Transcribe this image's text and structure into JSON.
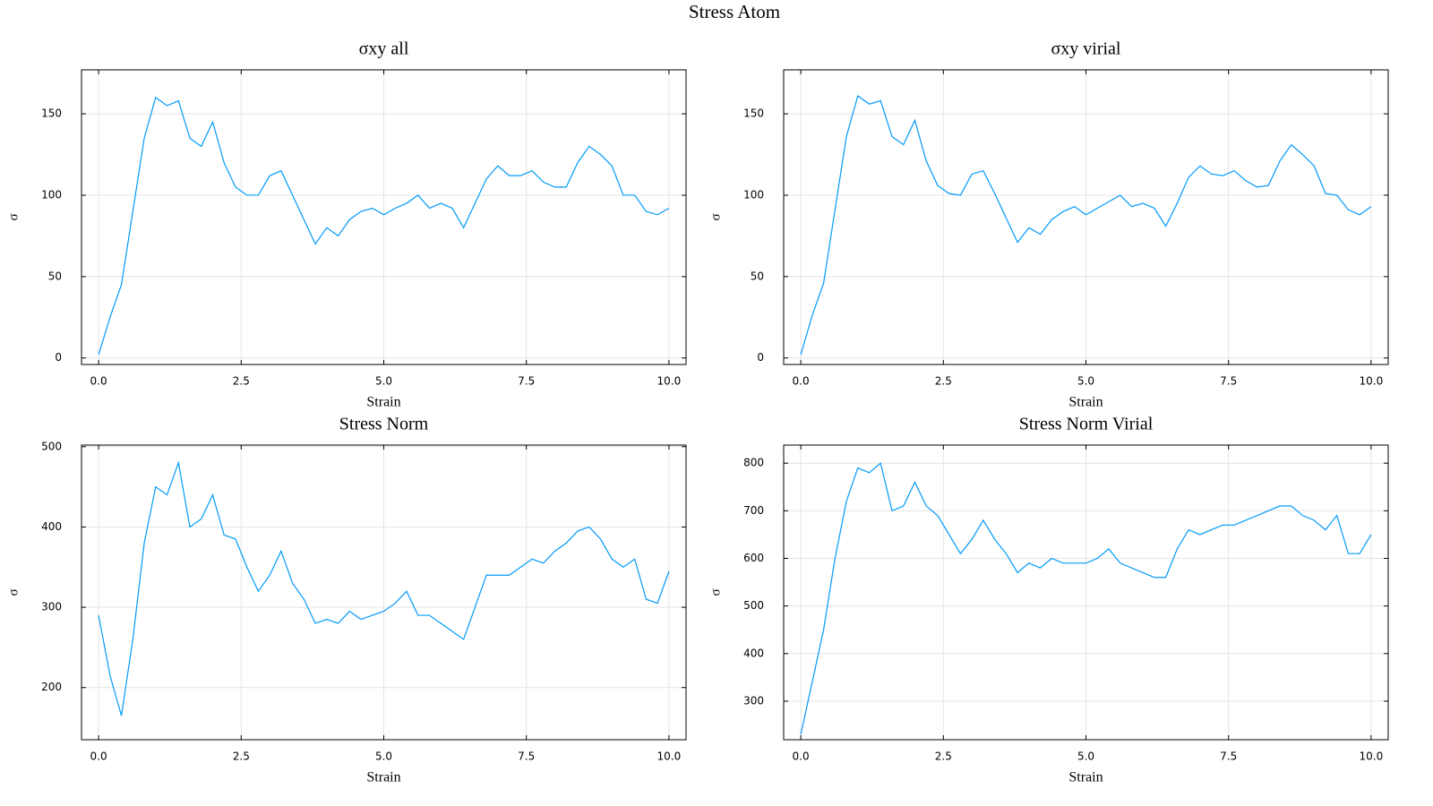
{
  "title": "Stress Atom",
  "chart_data": [
    {
      "type": "line",
      "title": "σxy all",
      "xlabel": "Strain",
      "ylabel": "σ",
      "grid": true,
      "x": [
        0,
        0.2,
        0.4,
        0.6,
        0.8,
        1,
        1.2,
        1.4,
        1.6,
        1.8,
        2,
        2.2,
        2.4,
        2.6,
        2.8,
        3,
        3.2,
        3.4,
        3.6,
        3.8,
        4,
        4.2,
        4.4,
        4.6,
        4.8,
        5,
        5.2,
        5.4,
        5.6,
        5.8,
        6,
        6.2,
        6.4,
        6.6,
        6.8,
        7,
        7.2,
        7.4,
        7.6,
        7.8,
        8,
        8.2,
        8.4,
        8.6,
        8.8,
        9,
        9.2,
        9.4,
        9.6,
        9.8,
        10
      ],
      "series": [
        {
          "color": "#009af9",
          "values": [
            2,
            25,
            45,
            90,
            135,
            160,
            155,
            158,
            135,
            130,
            145,
            120,
            105,
            100,
            100,
            112,
            115,
            100,
            85,
            70,
            80,
            75,
            85,
            90,
            92,
            88,
            92,
            95,
            100,
            92,
            95,
            92,
            80,
            95,
            110,
            118,
            112,
            112,
            115,
            108,
            105,
            105,
            120,
            130,
            125,
            118,
            100,
            100,
            90,
            88,
            92
          ]
        }
      ],
      "xlim": [
        -0.3,
        10.3
      ],
      "xticks": [
        {
          "value": 0,
          "label": "0.0"
        },
        2.5,
        {
          "value": 5,
          "label": "5.0"
        },
        7.5,
        {
          "value": 10,
          "label": "10.0"
        }
      ],
      "ylim": [
        -4,
        177
      ],
      "yticks": [
        0,
        50,
        100,
        150
      ]
    },
    {
      "type": "line",
      "title": "σxy virial",
      "xlabel": "Strain",
      "ylabel": "σ",
      "grid": true,
      "x": [
        0,
        0.2,
        0.4,
        0.6,
        0.8,
        1,
        1.2,
        1.4,
        1.6,
        1.8,
        2,
        2.2,
        2.4,
        2.6,
        2.8,
        3,
        3.2,
        3.4,
        3.6,
        3.8,
        4,
        4.2,
        4.4,
        4.6,
        4.8,
        5,
        5.2,
        5.4,
        5.6,
        5.8,
        6,
        6.2,
        6.4,
        6.6,
        6.8,
        7,
        7.2,
        7.4,
        7.6,
        7.8,
        8,
        8.2,
        8.4,
        8.6,
        8.8,
        9,
        9.2,
        9.4,
        9.6,
        9.8,
        10
      ],
      "series": [
        {
          "color": "#009af9",
          "values": [
            2,
            26,
            46,
            91,
            136,
            161,
            156,
            158,
            136,
            131,
            146,
            121,
            106,
            101,
            100,
            113,
            115,
            101,
            86,
            71,
            80,
            76,
            85,
            90,
            93,
            88,
            92,
            96,
            100,
            93,
            95,
            92,
            81,
            95,
            111,
            118,
            113,
            112,
            115,
            109,
            105,
            106,
            121,
            131,
            125,
            118,
            101,
            100,
            91,
            88,
            93
          ]
        }
      ],
      "xlim": [
        -0.3,
        10.3
      ],
      "xticks": [
        {
          "value": 0,
          "label": "0.0"
        },
        2.5,
        {
          "value": 5,
          "label": "5.0"
        },
        7.5,
        {
          "value": 10,
          "label": "10.0"
        }
      ],
      "ylim": [
        -4,
        177
      ],
      "yticks": [
        0,
        50,
        100,
        150
      ]
    },
    {
      "type": "line",
      "title": "Stress Norm",
      "xlabel": "Strain",
      "ylabel": "σ",
      "grid": true,
      "x": [
        0,
        0.2,
        0.4,
        0.6,
        0.8,
        1,
        1.2,
        1.4,
        1.6,
        1.8,
        2,
        2.2,
        2.4,
        2.6,
        2.8,
        3,
        3.2,
        3.4,
        3.6,
        3.8,
        4,
        4.2,
        4.4,
        4.6,
        4.8,
        5,
        5.2,
        5.4,
        5.6,
        5.8,
        6,
        6.2,
        6.4,
        6.6,
        6.8,
        7,
        7.2,
        7.4,
        7.6,
        7.8,
        8,
        8.2,
        8.4,
        8.6,
        8.8,
        9,
        9.2,
        9.4,
        9.6,
        9.8,
        10
      ],
      "series": [
        {
          "color": "#009af9",
          "values": [
            290,
            215,
            165,
            260,
            380,
            450,
            440,
            480,
            400,
            410,
            440,
            390,
            385,
            350,
            320,
            340,
            370,
            330,
            310,
            280,
            285,
            280,
            295,
            285,
            290,
            295,
            305,
            320,
            290,
            290,
            280,
            270,
            260,
            300,
            340,
            340,
            340,
            350,
            360,
            355,
            370,
            380,
            395,
            400,
            385,
            360,
            350,
            360,
            310,
            305,
            345
          ]
        }
      ],
      "xlim": [
        -0.3,
        10.3
      ],
      "xticks": [
        {
          "value": 0,
          "label": "0.0"
        },
        2.5,
        {
          "value": 5,
          "label": "5.0"
        },
        7.5,
        {
          "value": 10,
          "label": "10.0"
        }
      ],
      "ylim": [
        135,
        502
      ],
      "yticks": [
        200,
        300,
        400,
        500
      ]
    },
    {
      "type": "line",
      "title": "Stress Norm Virial",
      "xlabel": "Strain",
      "ylabel": "σ",
      "grid": true,
      "x": [
        0,
        0.2,
        0.4,
        0.6,
        0.8,
        1,
        1.2,
        1.4,
        1.6,
        1.8,
        2,
        2.2,
        2.4,
        2.6,
        2.8,
        3,
        3.2,
        3.4,
        3.6,
        3.8,
        4,
        4.2,
        4.4,
        4.6,
        4.8,
        5,
        5.2,
        5.4,
        5.6,
        5.8,
        6,
        6.2,
        6.4,
        6.6,
        6.8,
        7,
        7.2,
        7.4,
        7.6,
        7.8,
        8,
        8.2,
        8.4,
        8.6,
        8.8,
        9,
        9.2,
        9.4,
        9.6,
        9.8,
        10
      ],
      "series": [
        {
          "color": "#009af9",
          "values": [
            230,
            340,
            450,
            600,
            720,
            790,
            780,
            800,
            700,
            710,
            760,
            710,
            690,
            650,
            610,
            640,
            680,
            640,
            610,
            570,
            590,
            580,
            600,
            590,
            590,
            590,
            600,
            620,
            590,
            580,
            570,
            560,
            560,
            620,
            660,
            650,
            660,
            670,
            670,
            680,
            690,
            700,
            710,
            710,
            690,
            680,
            660,
            690,
            610,
            610,
            650
          ]
        }
      ],
      "xlim": [
        -0.3,
        10.3
      ],
      "xticks": [
        {
          "value": 0,
          "label": "0.0"
        },
        2.5,
        {
          "value": 5,
          "label": "5.0"
        },
        7.5,
        {
          "value": 10,
          "label": "10.0"
        }
      ],
      "ylim": [
        219,
        838
      ],
      "yticks": [
        300,
        400,
        500,
        600,
        700,
        800
      ]
    }
  ]
}
